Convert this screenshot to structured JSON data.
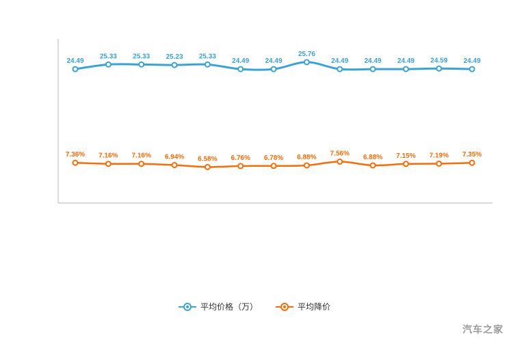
{
  "chart_data": {
    "type": "line",
    "title": "",
    "xlabel": "",
    "ylabel": "",
    "ylim": [
      0,
      30
    ],
    "grid": false,
    "legend_position": "bottom",
    "x": [
      1,
      2,
      3,
      4,
      5,
      6,
      7,
      8,
      9,
      10,
      11,
      12,
      13
    ],
    "series": [
      {
        "name": "平均价格（万）",
        "color": "#36a3db",
        "label_suffix": "",
        "values": [
          24.49,
          25.33,
          25.33,
          25.23,
          25.33,
          24.49,
          24.49,
          25.76,
          24.49,
          24.49,
          24.49,
          24.59,
          24.49
        ],
        "labels": [
          "24.49",
          "25.33",
          "25.33",
          "25.23",
          "25.33",
          "24.49",
          "24.49",
          "25.76",
          "24.49",
          "24.49",
          "24.49",
          "24.59",
          "24.49"
        ]
      },
      {
        "name": "平均降价",
        "color": "#ff6a00",
        "label_suffix": "%",
        "values": [
          7.36,
          7.16,
          7.16,
          6.94,
          6.58,
          6.76,
          6.78,
          6.88,
          7.56,
          6.88,
          7.15,
          7.19,
          7.35
        ],
        "labels": [
          "7.36%",
          "7.16%",
          "7.16%",
          "6.94%",
          "6.58%",
          "6.76%",
          "6.78%",
          "6.88%",
          "7.56%",
          "6.88%",
          "7.15%",
          "7.19%",
          "7.35%"
        ]
      }
    ]
  },
  "legend": {
    "items": [
      {
        "label": "平均价格（万）",
        "color": "#36a3db"
      },
      {
        "label": "平均降价",
        "color": "#ff6a00"
      }
    ]
  },
  "watermark": "汽车之家",
  "axis_color": "#b5b5b5"
}
